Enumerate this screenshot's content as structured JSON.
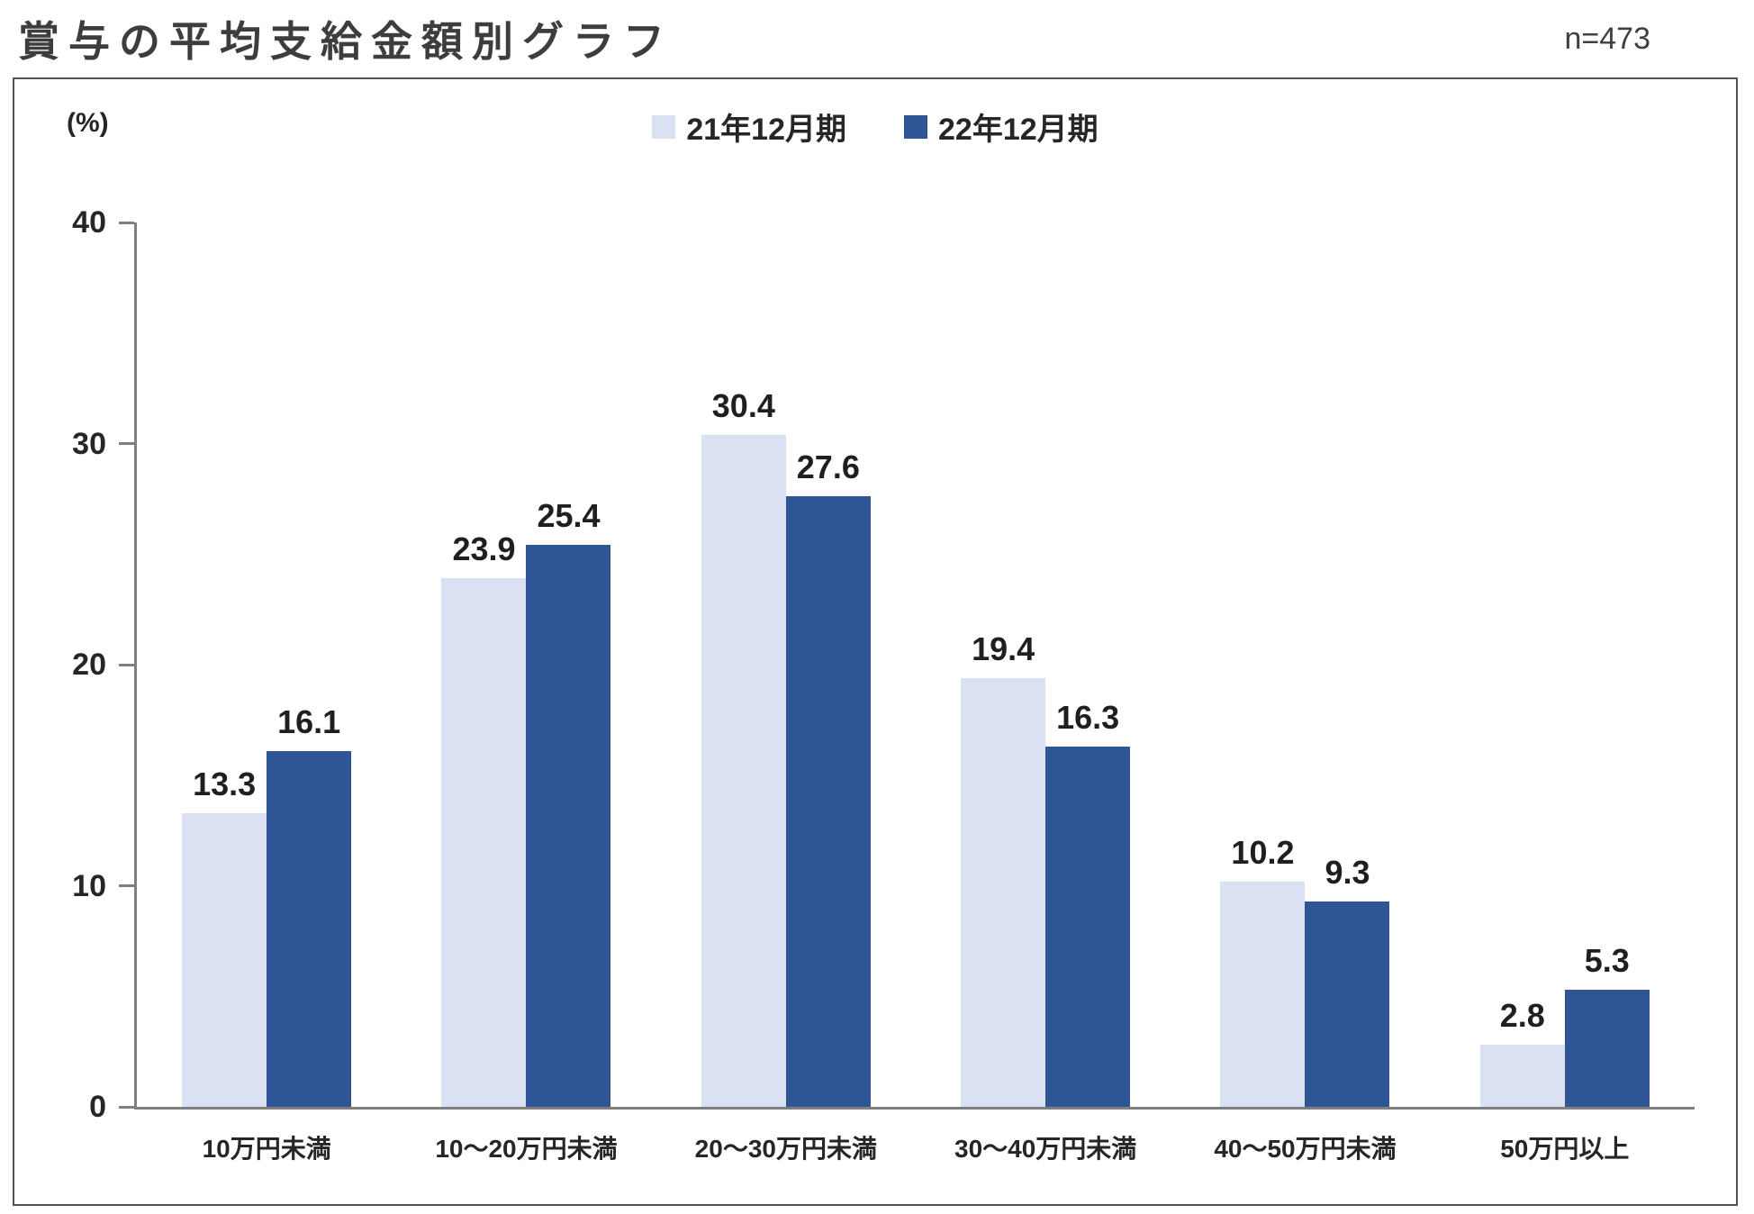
{
  "header": {
    "title": "賞与の平均支給金額別グラフ",
    "sample_size": "n=473"
  },
  "chart_data": {
    "type": "bar",
    "title": "賞与の平均支給金額別グラフ",
    "sample_size": "n=473",
    "categories": [
      "10万円未満",
      "10～20万円未満",
      "20～30万円未満",
      "30～40万円未満",
      "40～50万円未満",
      "50万円以上"
    ],
    "series": [
      {
        "name": "21年12月期",
        "color": "#D9E1F2",
        "values": [
          13.3,
          23.9,
          30.4,
          19.4,
          10.2,
          2.8
        ]
      },
      {
        "name": "22年12月期",
        "color": "#2F5597",
        "values": [
          16.1,
          25.4,
          27.6,
          16.3,
          9.3,
          5.3
        ]
      }
    ],
    "xlabel": "",
    "ylabel": "(%)",
    "ylim": [
      0,
      40
    ],
    "yticks": [
      0,
      10,
      20,
      30,
      40
    ],
    "grid": false,
    "legend_position": "top",
    "axis_color": "#7f7f7f"
  }
}
